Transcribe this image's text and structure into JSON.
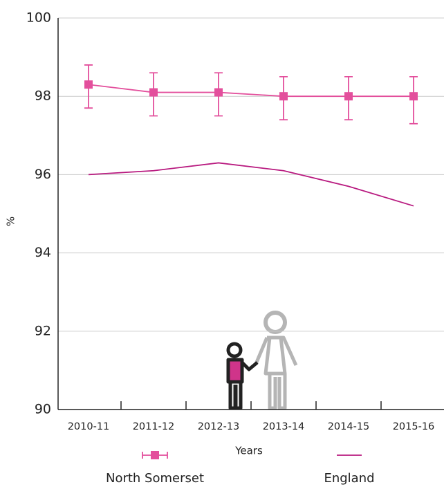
{
  "chart_data": {
    "type": "line",
    "categories": [
      "2010-11",
      "2011-12",
      "2012-13",
      "2013-14",
      "2014-15",
      "2015-16"
    ],
    "series": [
      {
        "name": "North Somerset",
        "color": "#e34f9c",
        "values": [
          98.3,
          98.1,
          98.1,
          98.0,
          98.0,
          98.0
        ],
        "lower": [
          97.7,
          97.5,
          97.5,
          97.4,
          97.4,
          97.3
        ],
        "upper": [
          98.8,
          98.6,
          98.6,
          98.5,
          98.5,
          98.5
        ]
      },
      {
        "name": "England",
        "color": "#b8197f",
        "values": [
          96.0,
          96.1,
          96.3,
          96.1,
          95.7,
          95.2
        ]
      }
    ],
    "ylim": [
      90,
      100
    ],
    "yticks": [
      90,
      92,
      94,
      96,
      98,
      100
    ],
    "xlabel": "Years",
    "ylabel": "%",
    "grid": true
  }
}
